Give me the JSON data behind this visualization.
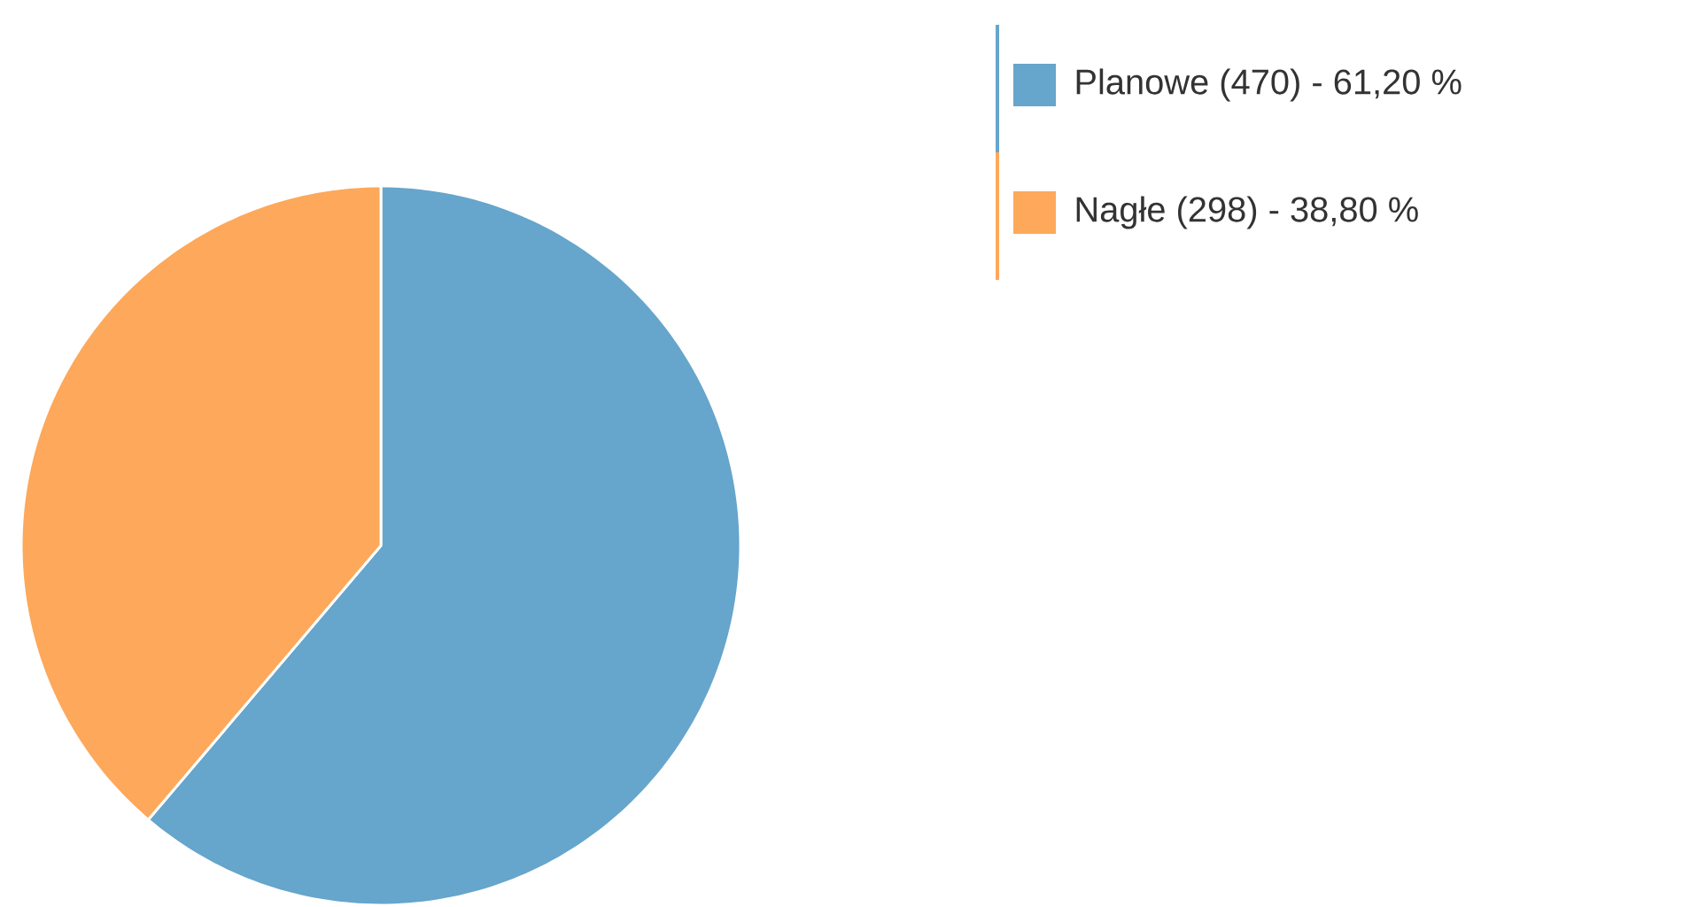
{
  "chart_data": {
    "type": "pie",
    "categories": [
      "Planowe (470) - 61,20 %",
      "Nagłe (298) - 38,80 %"
    ],
    "values": [
      470,
      298
    ],
    "colors": [
      "#66a5cc",
      "#fda85a"
    ],
    "legend": "top right"
  }
}
